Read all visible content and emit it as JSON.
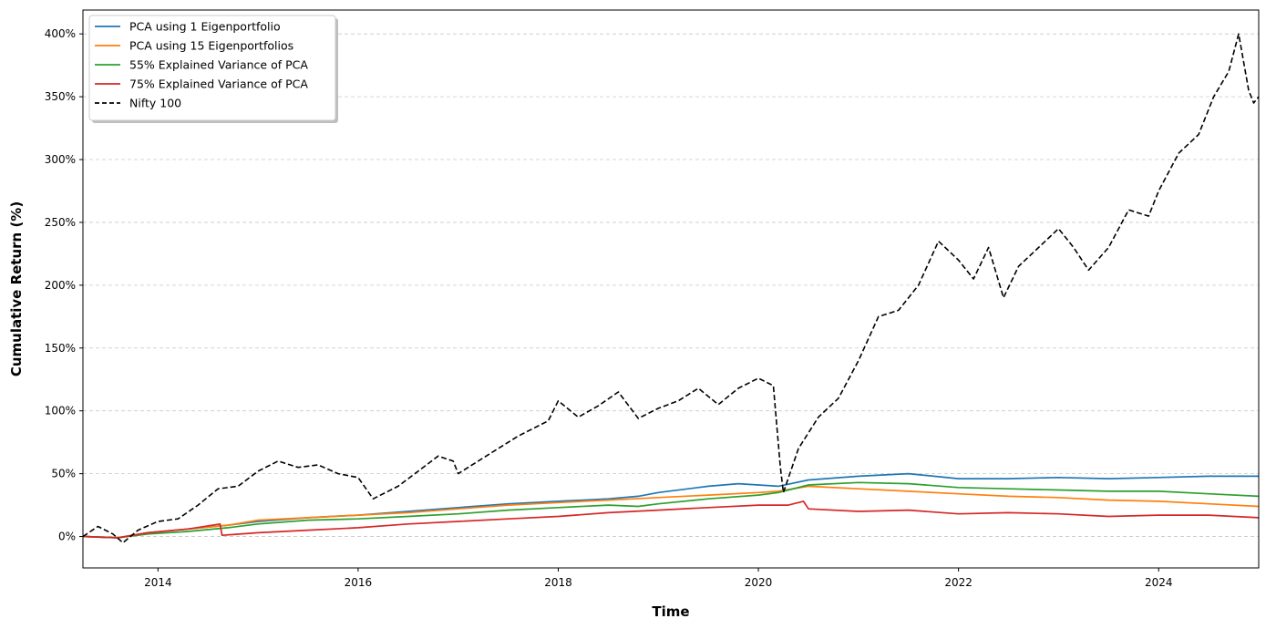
{
  "chart_data": {
    "type": "line",
    "title": "",
    "xlabel": "Time",
    "ylabel": "Cumulative Return (%)",
    "x_tick_labels": [
      "2014",
      "2016",
      "2018",
      "2020",
      "2022",
      "2024"
    ],
    "x_ticks": [
      2014,
      2016,
      2018,
      2020,
      2022,
      2024
    ],
    "y_tick_labels": [
      "0%",
      "50%",
      "100%",
      "150%",
      "200%",
      "250%",
      "300%",
      "350%",
      "400%"
    ],
    "y_ticks": [
      0,
      50,
      100,
      150,
      200,
      250,
      300,
      350,
      400
    ],
    "xlim": [
      2013.25,
      2025.0
    ],
    "ylim": [
      -25,
      419
    ],
    "grid": "horizontal dashed",
    "legend_position": "top-left",
    "series": [
      {
        "name": "PCA using 1 Eigenportfolio",
        "color": "#1f77b4",
        "style": "solid",
        "points": [
          [
            2013.25,
            0
          ],
          [
            2013.6,
            -1
          ],
          [
            2013.9,
            3
          ],
          [
            2014.3,
            6
          ],
          [
            2014.7,
            9
          ],
          [
            2015.0,
            12
          ],
          [
            2015.5,
            15
          ],
          [
            2016.0,
            17
          ],
          [
            2016.5,
            20
          ],
          [
            2017.0,
            23
          ],
          [
            2017.5,
            26
          ],
          [
            2018.0,
            28
          ],
          [
            2018.5,
            30
          ],
          [
            2018.8,
            32
          ],
          [
            2019.0,
            35
          ],
          [
            2019.5,
            40
          ],
          [
            2019.8,
            42
          ],
          [
            2020.0,
            41
          ],
          [
            2020.2,
            40
          ],
          [
            2020.5,
            45
          ],
          [
            2021.0,
            48
          ],
          [
            2021.5,
            50
          ],
          [
            2022.0,
            46
          ],
          [
            2022.5,
            46
          ],
          [
            2023.0,
            47
          ],
          [
            2023.5,
            46
          ],
          [
            2024.0,
            47
          ],
          [
            2024.5,
            48
          ],
          [
            2025.0,
            48
          ]
        ]
      },
      {
        "name": "PCA using 15 Eigenportfolios",
        "color": "#ff7f0e",
        "style": "solid",
        "points": [
          [
            2013.25,
            0
          ],
          [
            2013.6,
            -1
          ],
          [
            2013.9,
            3
          ],
          [
            2014.3,
            6
          ],
          [
            2014.7,
            9
          ],
          [
            2015.0,
            13
          ],
          [
            2015.5,
            15
          ],
          [
            2016.0,
            17
          ],
          [
            2016.5,
            19
          ],
          [
            2017.0,
            22
          ],
          [
            2017.5,
            25
          ],
          [
            2018.0,
            27
          ],
          [
            2018.5,
            29
          ],
          [
            2019.0,
            31
          ],
          [
            2019.5,
            33
          ],
          [
            2020.0,
            35
          ],
          [
            2020.2,
            36
          ],
          [
            2020.5,
            40
          ],
          [
            2021.0,
            38
          ],
          [
            2021.5,
            36
          ],
          [
            2022.0,
            34
          ],
          [
            2022.5,
            32
          ],
          [
            2023.0,
            31
          ],
          [
            2023.5,
            29
          ],
          [
            2024.0,
            28
          ],
          [
            2024.5,
            26
          ],
          [
            2025.0,
            24
          ]
        ]
      },
      {
        "name": "55% Explained Variance of PCA",
        "color": "#2ca02c",
        "style": "solid",
        "points": [
          [
            2013.25,
            0
          ],
          [
            2013.6,
            -1
          ],
          [
            2013.9,
            2
          ],
          [
            2014.3,
            4
          ],
          [
            2014.7,
            7
          ],
          [
            2015.0,
            10
          ],
          [
            2015.5,
            13
          ],
          [
            2016.0,
            14
          ],
          [
            2016.5,
            16
          ],
          [
            2017.0,
            18
          ],
          [
            2017.5,
            21
          ],
          [
            2018.0,
            23
          ],
          [
            2018.5,
            25
          ],
          [
            2018.8,
            24
          ],
          [
            2019.0,
            26
          ],
          [
            2019.5,
            30
          ],
          [
            2020.0,
            33
          ],
          [
            2020.2,
            35
          ],
          [
            2020.5,
            41
          ],
          [
            2021.0,
            43
          ],
          [
            2021.5,
            42
          ],
          [
            2022.0,
            39
          ],
          [
            2022.5,
            38
          ],
          [
            2023.0,
            37
          ],
          [
            2023.5,
            36
          ],
          [
            2024.0,
            36
          ],
          [
            2024.5,
            34
          ],
          [
            2025.0,
            32
          ]
        ]
      },
      {
        "name": "75% Explained Variance of PCA",
        "color": "#d62728",
        "style": "solid",
        "points": [
          [
            2013.25,
            0
          ],
          [
            2013.6,
            -1
          ],
          [
            2013.9,
            3
          ],
          [
            2014.3,
            6
          ],
          [
            2014.62,
            10
          ],
          [
            2014.64,
            1
          ],
          [
            2015.0,
            3
          ],
          [
            2015.5,
            5
          ],
          [
            2016.0,
            7
          ],
          [
            2016.5,
            10
          ],
          [
            2017.0,
            12
          ],
          [
            2017.5,
            14
          ],
          [
            2018.0,
            16
          ],
          [
            2018.5,
            19
          ],
          [
            2019.0,
            21
          ],
          [
            2019.5,
            23
          ],
          [
            2020.0,
            25
          ],
          [
            2020.3,
            25
          ],
          [
            2020.45,
            28
          ],
          [
            2020.5,
            22
          ],
          [
            2021.0,
            20
          ],
          [
            2021.5,
            21
          ],
          [
            2022.0,
            18
          ],
          [
            2022.5,
            19
          ],
          [
            2023.0,
            18
          ],
          [
            2023.5,
            16
          ],
          [
            2024.0,
            17
          ],
          [
            2024.5,
            17
          ],
          [
            2025.0,
            15
          ]
        ]
      },
      {
        "name": "Nifty 100",
        "color": "#000000",
        "style": "dashed",
        "points": [
          [
            2013.25,
            0
          ],
          [
            2013.4,
            8
          ],
          [
            2013.55,
            2
          ],
          [
            2013.65,
            -5
          ],
          [
            2013.8,
            5
          ],
          [
            2014.0,
            12
          ],
          [
            2014.2,
            14
          ],
          [
            2014.4,
            25
          ],
          [
            2014.6,
            38
          ],
          [
            2014.8,
            40
          ],
          [
            2015.0,
            52
          ],
          [
            2015.2,
            60
          ],
          [
            2015.4,
            55
          ],
          [
            2015.6,
            57
          ],
          [
            2015.8,
            50
          ],
          [
            2016.0,
            47
          ],
          [
            2016.15,
            30
          ],
          [
            2016.4,
            40
          ],
          [
            2016.6,
            52
          ],
          [
            2016.8,
            64
          ],
          [
            2016.95,
            60
          ],
          [
            2017.0,
            50
          ],
          [
            2017.3,
            65
          ],
          [
            2017.6,
            80
          ],
          [
            2017.9,
            92
          ],
          [
            2018.0,
            108
          ],
          [
            2018.2,
            95
          ],
          [
            2018.4,
            104
          ],
          [
            2018.6,
            115
          ],
          [
            2018.8,
            94
          ],
          [
            2019.0,
            102
          ],
          [
            2019.2,
            108
          ],
          [
            2019.4,
            118
          ],
          [
            2019.6,
            105
          ],
          [
            2019.8,
            118
          ],
          [
            2020.0,
            126
          ],
          [
            2020.15,
            120
          ],
          [
            2020.22,
            55
          ],
          [
            2020.25,
            35
          ],
          [
            2020.4,
            70
          ],
          [
            2020.6,
            95
          ],
          [
            2020.8,
            110
          ],
          [
            2021.0,
            140
          ],
          [
            2021.2,
            175
          ],
          [
            2021.4,
            180
          ],
          [
            2021.6,
            200
          ],
          [
            2021.8,
            235
          ],
          [
            2022.0,
            220
          ],
          [
            2022.15,
            205
          ],
          [
            2022.3,
            230
          ],
          [
            2022.45,
            190
          ],
          [
            2022.6,
            215
          ],
          [
            2022.8,
            230
          ],
          [
            2023.0,
            245
          ],
          [
            2023.15,
            230
          ],
          [
            2023.3,
            212
          ],
          [
            2023.5,
            230
          ],
          [
            2023.7,
            260
          ],
          [
            2023.9,
            255
          ],
          [
            2024.0,
            275
          ],
          [
            2024.2,
            305
          ],
          [
            2024.4,
            320
          ],
          [
            2024.55,
            350
          ],
          [
            2024.7,
            370
          ],
          [
            2024.8,
            400
          ],
          [
            2024.9,
            355
          ],
          [
            2024.95,
            345
          ],
          [
            2025.0,
            350
          ]
        ]
      }
    ]
  }
}
